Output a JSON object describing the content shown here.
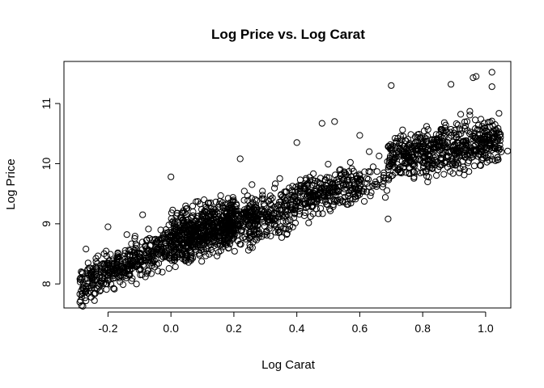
{
  "chart_data": {
    "type": "scatter",
    "title": "Log Price vs. Log Carat",
    "xlabel": "Log Carat",
    "ylabel": "Log Price",
    "xlim": [
      -0.34,
      1.08
    ],
    "ylim": [
      7.6,
      11.7
    ],
    "grid": false,
    "legend": "none",
    "marker": "open-circle",
    "marker_color": "#000000",
    "x_ticks": [
      {
        "value": -0.2,
        "label": "-0.2"
      },
      {
        "value": 0.0,
        "label": "0.0"
      },
      {
        "value": 0.2,
        "label": "0.2"
      },
      {
        "value": 0.4,
        "label": "0.4"
      },
      {
        "value": 0.6,
        "label": "0.6"
      },
      {
        "value": 0.8,
        "label": "0.8"
      },
      {
        "value": 1.0,
        "label": "1.0"
      }
    ],
    "y_ticks": [
      {
        "value": 8,
        "label": "8"
      },
      {
        "value": 9,
        "label": "9"
      },
      {
        "value": 10,
        "label": "10"
      },
      {
        "value": 11,
        "label": "11"
      }
    ],
    "clusters": [
      {
        "x_range": [
          -0.29,
          -0.11
        ],
        "y_center": [
          7.95,
          8.45
        ],
        "y_spread": 0.28,
        "n": 260
      },
      {
        "x_range": [
          -0.11,
          0.0
        ],
        "y_center": [
          8.35,
          8.7
        ],
        "y_spread": 0.3,
        "n": 150
      },
      {
        "x_range": [
          0.0,
          0.2
        ],
        "y_center": [
          8.7,
          9.05
        ],
        "y_spread": 0.38,
        "n": 650
      },
      {
        "x_range": [
          0.2,
          0.4
        ],
        "y_center": [
          9.0,
          9.3
        ],
        "y_spread": 0.35,
        "n": 320
      },
      {
        "x_range": [
          0.4,
          0.6
        ],
        "y_center": [
          9.4,
          9.65
        ],
        "y_spread": 0.3,
        "n": 260
      },
      {
        "x_range": [
          0.6,
          0.69
        ],
        "y_center": [
          9.6,
          9.8
        ],
        "y_spread": 0.25,
        "n": 40
      },
      {
        "x_range": [
          0.69,
          1.05
        ],
        "y_center": [
          10.1,
          10.4
        ],
        "y_spread": 0.35,
        "n": 600
      }
    ],
    "outliers": [
      {
        "x": 1.02,
        "y": 11.52
      },
      {
        "x": 0.97,
        "y": 11.45
      },
      {
        "x": 0.96,
        "y": 11.43
      },
      {
        "x": 1.02,
        "y": 11.28
      },
      {
        "x": 0.89,
        "y": 11.32
      },
      {
        "x": 0.7,
        "y": 11.3
      },
      {
        "x": 0.69,
        "y": 9.08
      },
      {
        "x": 1.07,
        "y": 10.21
      },
      {
        "x": 1.03,
        "y": 10.65
      },
      {
        "x": 0.52,
        "y": 10.7
      },
      {
        "x": 0.48,
        "y": 10.67
      },
      {
        "x": 0.6,
        "y": 10.47
      },
      {
        "x": 0.4,
        "y": 10.35
      },
      {
        "x": 0.63,
        "y": 10.2
      },
      {
        "x": 0.22,
        "y": 10.08
      },
      {
        "x": -0.09,
        "y": 9.15
      },
      {
        "x": -0.2,
        "y": 8.95
      },
      {
        "x": -0.27,
        "y": 8.58
      },
      {
        "x": -0.27,
        "y": 7.72
      },
      {
        "x": -0.14,
        "y": 8.82
      },
      {
        "x": 0.0,
        "y": 9.78
      }
    ]
  }
}
